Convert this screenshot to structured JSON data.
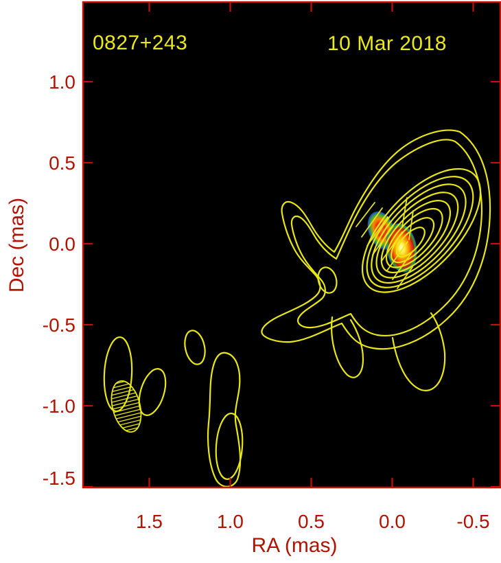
{
  "figure": {
    "source_label": "0827+243",
    "epoch_label": "10 Mar 2018",
    "xlabel": "RA (mas)",
    "ylabel": "Dec (mas)"
  },
  "colors": {
    "plot_background": "#000000",
    "page_background": "#ffffff",
    "frame_red": "#c41200",
    "label_red": "#b01300",
    "contour_yellow": "#e9e715",
    "annotation_yellow": "#eae81c"
  },
  "chart_data": {
    "type": "heatmap",
    "subtype": "VLBI radio total-intensity contour map with linear polarization color overlay and EVPA tick marks",
    "title": "0827+243",
    "annotation": "10 Mar 2018",
    "xlabel": "RA (mas)",
    "ylabel": "Dec (mas)",
    "x_axis_inverted": true,
    "grid": false,
    "xlim": [
      1.91,
      -0.67
    ],
    "ylim": [
      -1.5,
      1.49
    ],
    "x_ticks": [
      {
        "value": 1.5,
        "label": "1.5"
      },
      {
        "value": 1.0,
        "label": "1.0"
      },
      {
        "value": 0.5,
        "label": "0.5"
      },
      {
        "value": 0.0,
        "label": "0.0"
      },
      {
        "value": -0.5,
        "label": "-0.5"
      }
    ],
    "y_ticks": [
      {
        "value": 1.0,
        "label": "1.0"
      },
      {
        "value": 0.5,
        "label": "0.5"
      },
      {
        "value": 0.0,
        "label": "0.0"
      },
      {
        "value": -0.5,
        "label": "-0.5"
      },
      {
        "value": -1.0,
        "label": "-1.0"
      },
      {
        "value": -1.5,
        "label": "-1.5"
      }
    ],
    "contours": {
      "color": "#e9e715",
      "n_levels": 10,
      "core_structure": "nested elongated contours centered near RA -0.15, Dec 0.05, major axis position angle ~ -45 deg (elongated toward north-east)",
      "jet": "jet extends to the south-west with a pointed arm reaching RA ~0.8, Dec ~-0.55 and a finger toward RA ~0.65, Dec ~0.25; small closed island near RA 0.4, Dec -0.22",
      "isolated_low_level_features": [
        {
          "ra_mas": 1.69,
          "dec_mas": -0.81,
          "shape": "tall ellipse"
        },
        {
          "ra_mas": 1.48,
          "dec_mas": -0.92,
          "shape": "tilted ellipse"
        },
        {
          "ra_mas": 1.22,
          "dec_mas": -0.64,
          "shape": "small ellipse"
        },
        {
          "ra_mas": 1.0,
          "dec_mas": -1.25,
          "shape": "tall bean with inner contour, extends below Dec -1.5"
        }
      ]
    },
    "polarization": {
      "patches": [
        {
          "ra_mas": 0.07,
          "dec_mas": 0.08,
          "core_color": "red-orange",
          "edge_colors": "green/blue"
        },
        {
          "ra_mas": -0.06,
          "dec_mas": -0.03,
          "core_color": "yellow-white",
          "edge_colors": "orange/red then green/blue"
        }
      ],
      "evpa_tick_angle_deg": 54,
      "evpa_tick_color": "#e9e715"
    },
    "beam": {
      "center_ra_mas": 1.64,
      "center_dec_mas": -1.0,
      "hatched": true,
      "outline_color": "#e9e715"
    }
  }
}
